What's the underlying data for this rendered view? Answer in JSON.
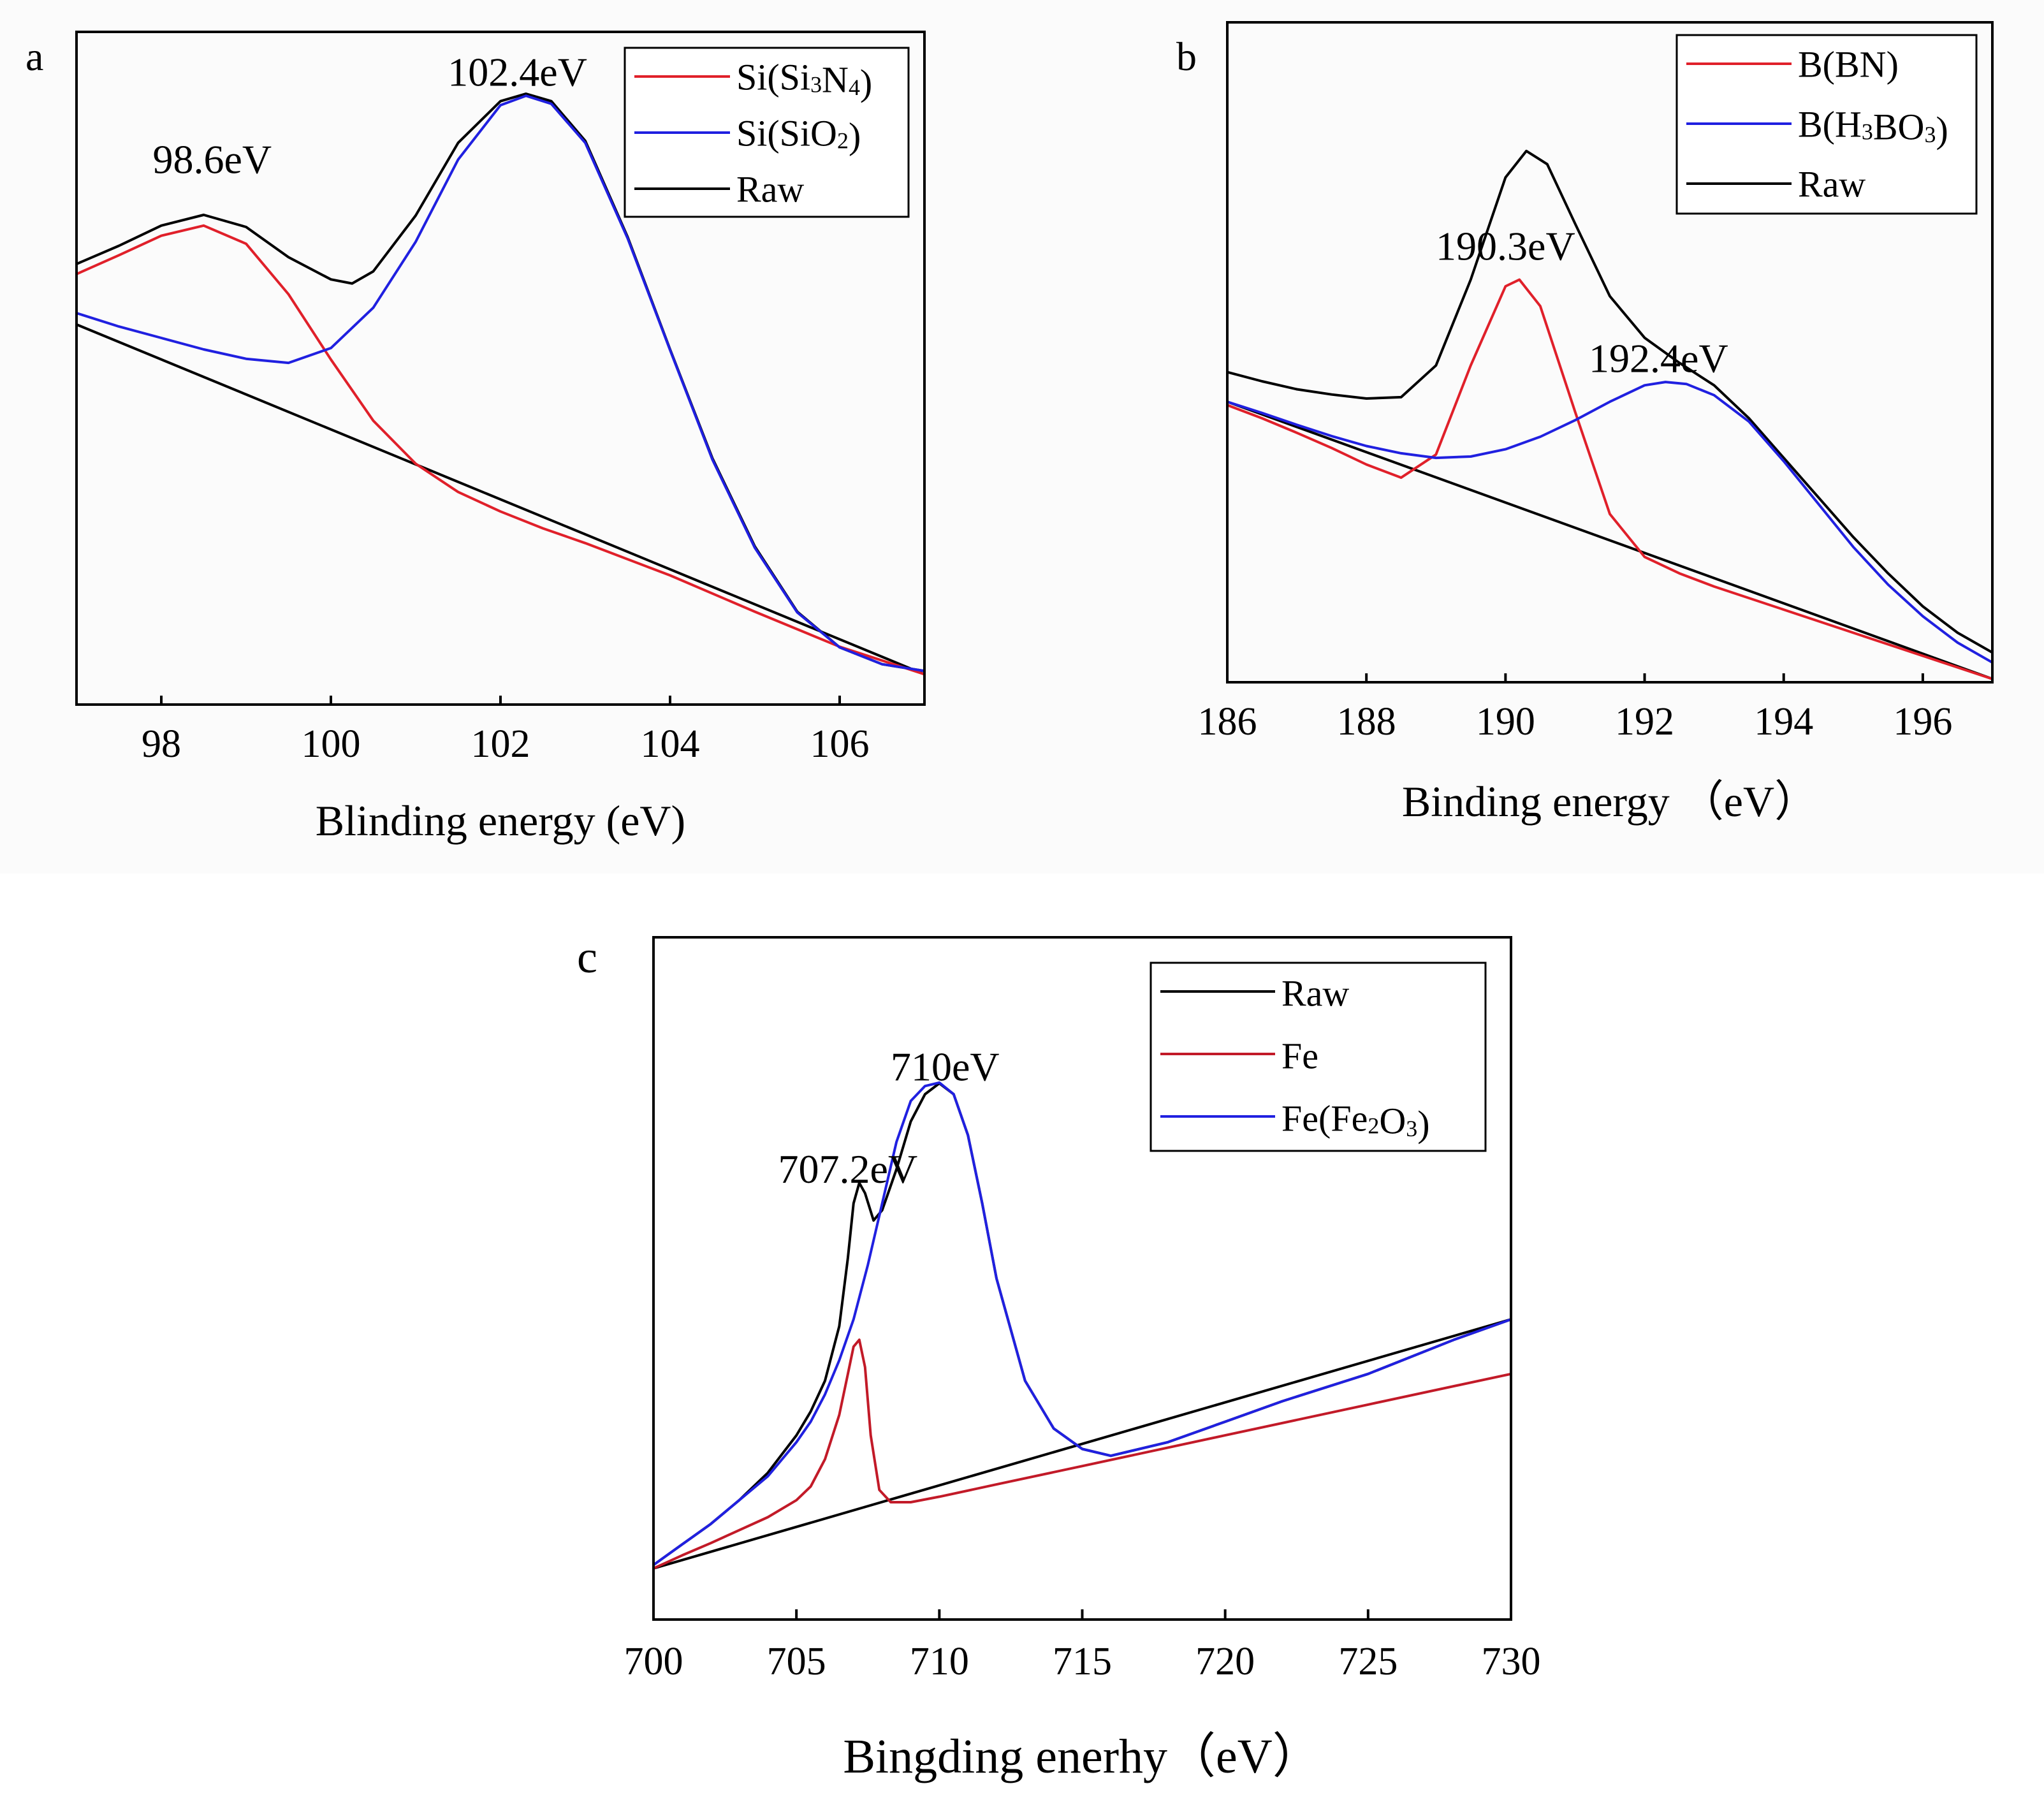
{
  "colors": {
    "raw": "#000000",
    "red": "#e0202a",
    "blue": "#2020e0",
    "fe": "#c21a28",
    "panel_bg": "#fbfbfb"
  },
  "chart_data": [
    {
      "panel": "a",
      "type": "line",
      "xlabel": "Blinding energy (eV)",
      "ylabel": "",
      "xlim": [
        97,
        107
      ],
      "ylim": [
        0,
        1
      ],
      "xticks": [
        98,
        100,
        102,
        104,
        106
      ],
      "legend_position": "top-right",
      "legend": [
        {
          "label": "Si(Si₃N₄)",
          "color_key": "red"
        },
        {
          "label": "Si(SiO₂)",
          "color_key": "blue"
        },
        {
          "label": "Raw",
          "color_key": "raw"
        }
      ],
      "annotations": [
        {
          "text": "98.6eV",
          "x": 98.6,
          "y": 0.79
        },
        {
          "text": "102.4eV",
          "x": 102.2,
          "y": 0.92
        }
      ],
      "series": [
        {
          "name": "Raw",
          "color_key": "raw",
          "x": [
            97,
            97.5,
            98,
            98.5,
            99,
            99.5,
            100,
            100.25,
            100.5,
            101,
            101.5,
            102,
            102.3,
            102.6,
            103,
            103.5,
            104,
            104.5,
            105,
            105.5,
            106,
            106.5,
            107
          ],
          "y": [
            0.655,
            0.682,
            0.712,
            0.728,
            0.71,
            0.665,
            0.632,
            0.626,
            0.644,
            0.727,
            0.835,
            0.897,
            0.908,
            0.897,
            0.838,
            0.695,
            0.528,
            0.366,
            0.235,
            0.138,
            0.085,
            0.06,
            0.05
          ]
        },
        {
          "name": "Si(Si₃N₄)",
          "color_key": "red",
          "x": [
            97,
            97.5,
            98,
            98.5,
            99,
            99.5,
            100,
            100.5,
            101,
            101.5,
            102,
            102.5,
            103,
            104,
            105,
            106,
            107
          ],
          "y": [
            0.64,
            0.668,
            0.697,
            0.712,
            0.685,
            0.61,
            0.513,
            0.422,
            0.358,
            0.316,
            0.287,
            0.262,
            0.24,
            0.192,
            0.138,
            0.086,
            0.045
          ]
        },
        {
          "name": "Si(SiO₂)",
          "color_key": "blue",
          "x": [
            97,
            97.5,
            98,
            98.5,
            99,
            99.5,
            100,
            100.5,
            101,
            101.5,
            102,
            102.3,
            102.6,
            103,
            103.5,
            104,
            104.5,
            105,
            105.5,
            106,
            106.5,
            107
          ],
          "y": [
            0.582,
            0.562,
            0.545,
            0.528,
            0.514,
            0.508,
            0.53,
            0.59,
            0.688,
            0.81,
            0.891,
            0.905,
            0.893,
            0.835,
            0.693,
            0.527,
            0.364,
            0.233,
            0.137,
            0.085,
            0.06,
            0.05
          ]
        },
        {
          "name": "Baseline",
          "color_key": "raw",
          "x": [
            97,
            107
          ],
          "y": [
            0.565,
            0.045
          ]
        }
      ]
    },
    {
      "panel": "b",
      "type": "line",
      "xlabel": "Binding energy （eV）",
      "ylabel": "",
      "xlim": [
        186,
        197
      ],
      "ylim": [
        0,
        1
      ],
      "xticks": [
        186,
        188,
        190,
        192,
        194,
        196
      ],
      "legend_position": "top-right",
      "legend": [
        {
          "label": "B(BN)",
          "color_key": "red"
        },
        {
          "label": "B(H₃BO₃)",
          "color_key": "blue"
        },
        {
          "label": "Raw",
          "color_key": "raw"
        }
      ],
      "annotations": [
        {
          "text": "190.3eV",
          "x": 190.0,
          "y": 0.64
        },
        {
          "text": "192.4eV",
          "x": 192.2,
          "y": 0.47
        }
      ],
      "series": [
        {
          "name": "Raw",
          "color_key": "raw",
          "x": [
            186,
            186.5,
            187,
            187.5,
            188,
            188.5,
            189,
            189.5,
            190,
            190.3,
            190.6,
            191,
            191.5,
            192,
            192.5,
            193,
            193.5,
            194,
            194.5,
            195,
            195.5,
            196,
            196.5,
            197
          ],
          "y": [
            0.47,
            0.456,
            0.444,
            0.436,
            0.43,
            0.432,
            0.48,
            0.61,
            0.765,
            0.805,
            0.785,
            0.695,
            0.585,
            0.522,
            0.484,
            0.45,
            0.4,
            0.34,
            0.28,
            0.22,
            0.165,
            0.115,
            0.075,
            0.045
          ]
        },
        {
          "name": "B(BN)",
          "color_key": "red",
          "x": [
            186,
            186.5,
            187,
            187.5,
            188,
            188.5,
            189,
            189.5,
            190,
            190.2,
            190.5,
            191,
            191.5,
            192,
            192.5,
            193,
            194,
            195,
            196,
            197
          ],
          "y": [
            0.42,
            0.4,
            0.378,
            0.355,
            0.33,
            0.31,
            0.345,
            0.48,
            0.6,
            0.61,
            0.57,
            0.41,
            0.255,
            0.19,
            0.165,
            0.145,
            0.11,
            0.075,
            0.04,
            0.005
          ]
        },
        {
          "name": "B(H₃BO₃)",
          "color_key": "blue",
          "x": [
            186,
            186.5,
            187,
            187.5,
            188,
            188.5,
            189,
            189.5,
            190,
            190.5,
            191,
            191.5,
            192,
            192.3,
            192.6,
            193,
            193.5,
            194,
            194.5,
            195,
            195.5,
            196,
            196.5,
            197
          ],
          "y": [
            0.425,
            0.408,
            0.39,
            0.373,
            0.358,
            0.347,
            0.34,
            0.342,
            0.353,
            0.372,
            0.397,
            0.425,
            0.45,
            0.455,
            0.452,
            0.435,
            0.395,
            0.335,
            0.27,
            0.205,
            0.148,
            0.1,
            0.06,
            0.03
          ]
        },
        {
          "name": "Baseline",
          "color_key": "raw",
          "x": [
            186,
            197
          ],
          "y": [
            0.425,
            0.005
          ]
        }
      ]
    },
    {
      "panel": "c",
      "type": "line",
      "xlabel": "Bingding enerhy（eV）",
      "ylabel": "",
      "xlim": [
        700,
        730
      ],
      "ylim": [
        0,
        1
      ],
      "xticks": [
        700,
        705,
        710,
        715,
        720,
        725,
        730
      ],
      "legend_position": "top-right",
      "legend": [
        {
          "label": "Raw",
          "color_key": "raw"
        },
        {
          "label": "Fe",
          "color_key": "fe"
        },
        {
          "label": "Fe(Fe₂O₃)",
          "color_key": "blue"
        }
      ],
      "annotations": [
        {
          "text": "707.2eV",
          "x": 706.8,
          "y": 0.64
        },
        {
          "text": "710eV",
          "x": 710.2,
          "y": 0.79
        }
      ],
      "series": [
        {
          "name": "Raw",
          "color_key": "raw",
          "x": [
            700,
            701,
            702,
            703,
            704,
            705,
            705.5,
            706,
            706.5,
            706.8,
            707,
            707.2,
            707.4,
            707.7,
            708,
            708.5,
            709,
            709.5,
            710,
            710.5,
            711,
            711.5,
            712,
            713,
            714,
            715,
            716,
            718,
            720,
            722,
            725,
            728,
            730
          ],
          "y": [
            0.08,
            0.11,
            0.14,
            0.175,
            0.215,
            0.27,
            0.305,
            0.35,
            0.43,
            0.53,
            0.61,
            0.64,
            0.625,
            0.585,
            0.6,
            0.66,
            0.73,
            0.77,
            0.786,
            0.77,
            0.71,
            0.61,
            0.5,
            0.35,
            0.28,
            0.25,
            0.24,
            0.26,
            0.29,
            0.32,
            0.36,
            0.41,
            0.44
          ]
        },
        {
          "name": "Fe",
          "color_key": "fe",
          "x": [
            700,
            701,
            702,
            703,
            704,
            705,
            705.5,
            706,
            706.5,
            706.8,
            707,
            707.2,
            707.4,
            707.6,
            707.9,
            708.3,
            709,
            710,
            712,
            715,
            720,
            725,
            730
          ],
          "y": [
            0.075,
            0.094,
            0.112,
            0.131,
            0.15,
            0.175,
            0.195,
            0.235,
            0.3,
            0.36,
            0.4,
            0.41,
            0.37,
            0.27,
            0.19,
            0.172,
            0.172,
            0.18,
            0.198,
            0.225,
            0.27,
            0.315,
            0.36
          ]
        },
        {
          "name": "Fe(Fe₂O₃)",
          "color_key": "blue",
          "x": [
            700,
            701,
            702,
            703,
            704,
            705,
            705.5,
            706,
            706.5,
            707,
            707.5,
            708,
            708.5,
            709,
            709.5,
            710,
            710.5,
            711,
            711.5,
            712,
            713,
            714,
            715,
            716,
            718,
            720,
            722,
            725,
            728,
            730
          ],
          "y": [
            0.08,
            0.11,
            0.14,
            0.175,
            0.21,
            0.26,
            0.29,
            0.33,
            0.38,
            0.44,
            0.52,
            0.61,
            0.7,
            0.76,
            0.782,
            0.787,
            0.77,
            0.71,
            0.61,
            0.5,
            0.35,
            0.28,
            0.25,
            0.24,
            0.26,
            0.29,
            0.32,
            0.36,
            0.41,
            0.44
          ]
        },
        {
          "name": "Baseline",
          "color_key": "raw",
          "x": [
            700,
            730
          ],
          "y": [
            0.075,
            0.44
          ]
        }
      ]
    }
  ]
}
